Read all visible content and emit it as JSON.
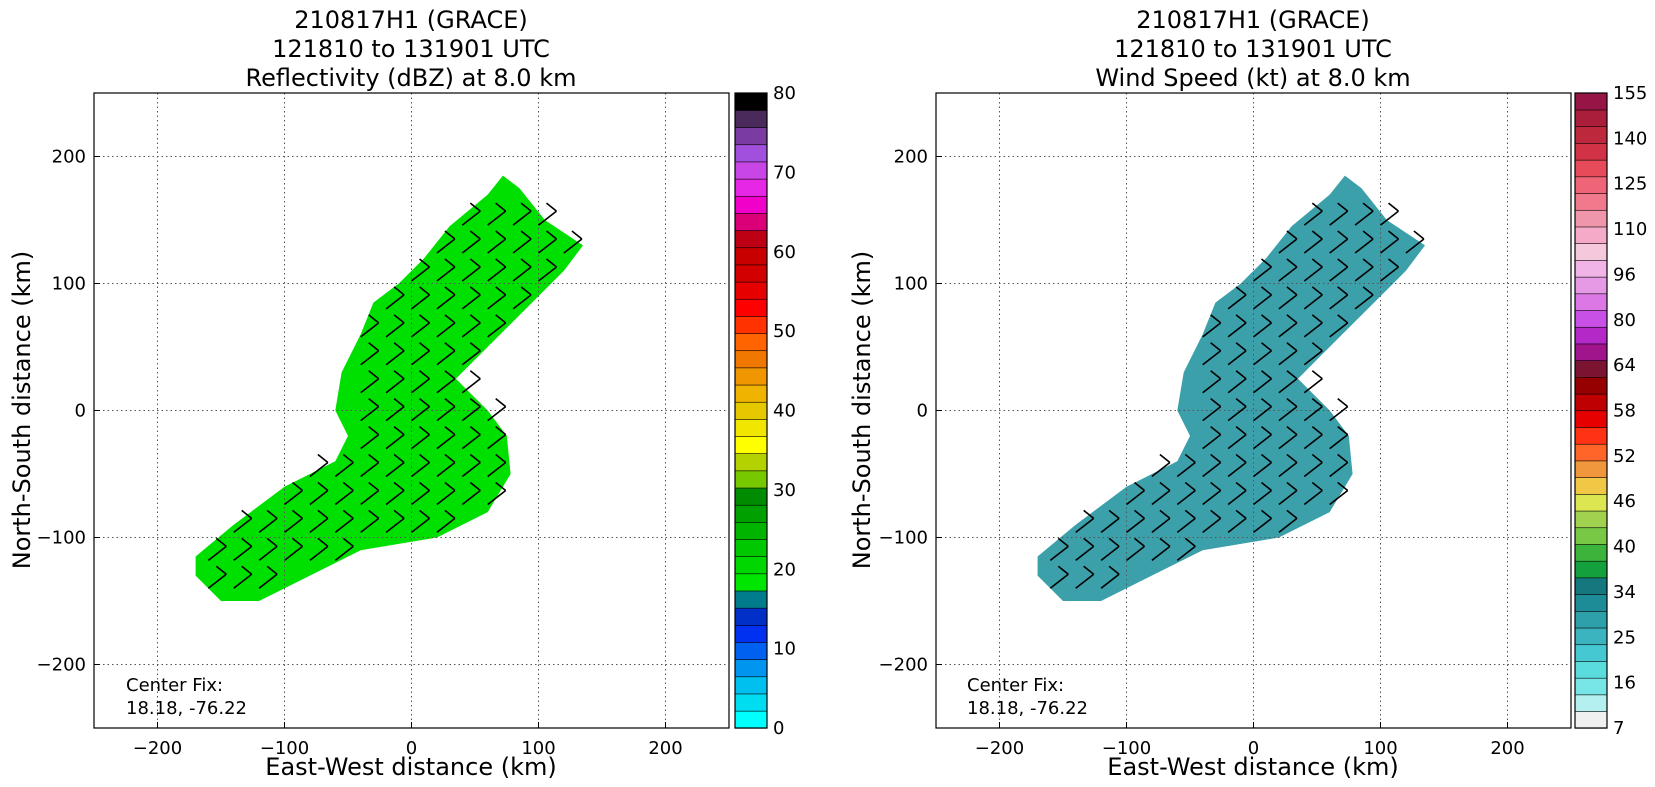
{
  "chart_data": [
    {
      "type": "heatmap",
      "title_lines": [
        "210817H1 (GRACE)",
        "121810 to 131901 UTC",
        "Reflectivity (dBZ) at 8.0 km"
      ],
      "xlabel": "East-West distance (km)",
      "ylabel": "North-South distance (km)",
      "xlim": [
        -250,
        250
      ],
      "ylim": [
        -250,
        250
      ],
      "xticks": [
        -200,
        -100,
        0,
        100,
        200
      ],
      "yticks": [
        -200,
        -100,
        0,
        100,
        200
      ],
      "grid": true,
      "annotation_lines": [
        "Center Fix:",
        "18.18, -76.22"
      ],
      "colorbar": {
        "min": 0,
        "max": 80,
        "tick_values": [
          0,
          10,
          20,
          30,
          40,
          50,
          60,
          70,
          80
        ],
        "tick_labels": [
          "0",
          "10",
          "20",
          "30",
          "40",
          "50",
          "60",
          "70",
          "80"
        ],
        "colors": [
          "#00ffff",
          "#00dcf0",
          "#00c0f0",
          "#0096f0",
          "#0060f0",
          "#0030f0",
          "#0030c8",
          "#007c8c",
          "#00e600",
          "#00d700",
          "#00c800",
          "#00b400",
          "#00a000",
          "#008c00",
          "#78c800",
          "#b4d200",
          "#ffff00",
          "#f0e600",
          "#e6c800",
          "#f0b400",
          "#f09600",
          "#f07800",
          "#ff6400",
          "#ff3200",
          "#ff0000",
          "#e60000",
          "#d20000",
          "#c80000",
          "#be0014",
          "#dc0078",
          "#f000c8",
          "#e628e6",
          "#c846e6",
          "#a050dc",
          "#7a3ca0",
          "#4a2a5a",
          "#000000"
        ]
      },
      "field_color": "#00e000",
      "barbs": "wind barbs"
    },
    {
      "type": "heatmap",
      "title_lines": [
        "210817H1 (GRACE)",
        "121810 to 131901 UTC",
        "Wind Speed (kt) at 8.0 km"
      ],
      "xlabel": "East-West distance (km)",
      "ylabel": "North-South distance (km)",
      "xlim": [
        -250,
        250
      ],
      "ylim": [
        -250,
        250
      ],
      "xticks": [
        -200,
        -100,
        0,
        100,
        200
      ],
      "yticks": [
        -200,
        -100,
        0,
        100,
        200
      ],
      "grid": true,
      "annotation_lines": [
        "Center Fix:",
        "18.18, -76.22"
      ],
      "colorbar": {
        "min": 7,
        "max": 155,
        "tick_labels": [
          "7",
          "16",
          "25",
          "34",
          "40",
          "46",
          "52",
          "58",
          "64",
          "80",
          "96",
          "110",
          "125",
          "140",
          "155"
        ],
        "colors": [
          "#f0f0f0",
          "#b4f0f0",
          "#78e6e6",
          "#5adcdc",
          "#46c8d2",
          "#3cb4c0",
          "#2ea0aa",
          "#1e8c96",
          "#14787e",
          "#14a03c",
          "#3cb43c",
          "#78c846",
          "#a0d250",
          "#dce650",
          "#f0c846",
          "#f0963c",
          "#ff6428",
          "#ff3214",
          "#e60000",
          "#be0000",
          "#960000",
          "#7a1430",
          "#a0148c",
          "#b428c8",
          "#c850e6",
          "#dc78e6",
          "#e69ae6",
          "#f0b4e6",
          "#f5c8dc",
          "#f5aac8",
          "#f096aa",
          "#f07a8c",
          "#f06478",
          "#e64b5a",
          "#d23246",
          "#be283c",
          "#aa1e3c",
          "#961446"
        ]
      },
      "field_color": "#3ca0aa",
      "barbs": "wind barbs"
    }
  ]
}
